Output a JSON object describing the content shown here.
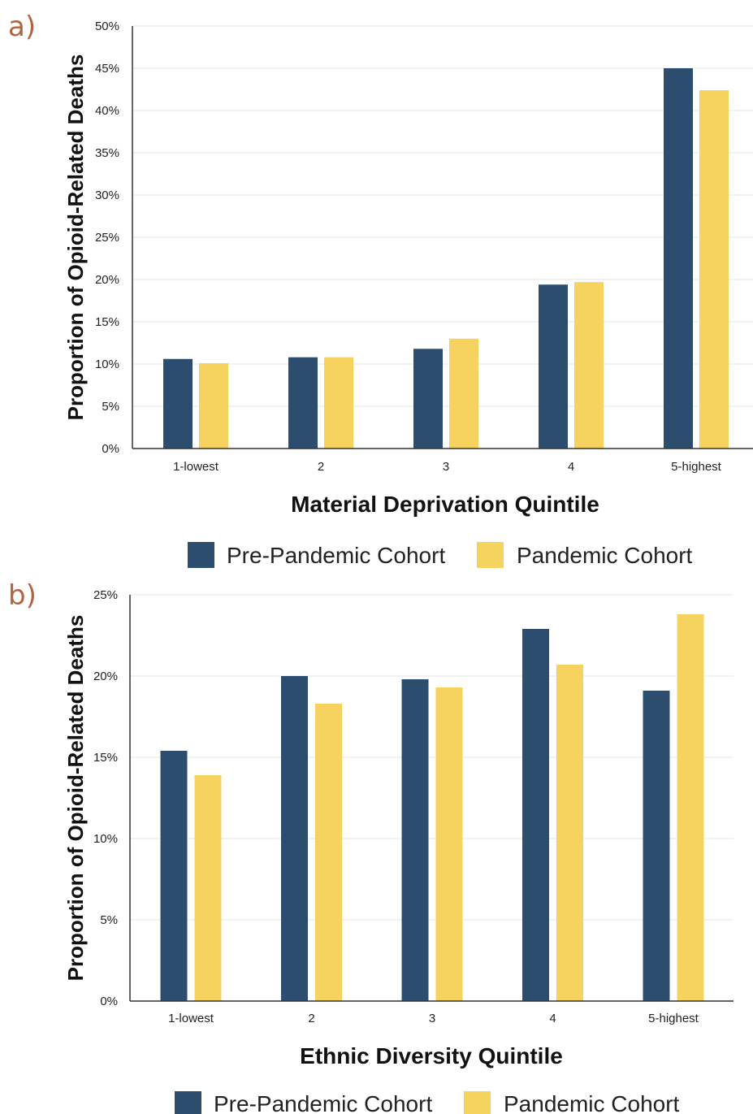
{
  "colors": {
    "pre": "#2c4d6e",
    "pan": "#f6d35f",
    "grid": "#e6e6e6",
    "axis": "#333333"
  },
  "legend": {
    "pre_label": "Pre-Pandemic Cohort",
    "pan_label": "Pandemic Cohort"
  },
  "chart_data": [
    {
      "type": "bar",
      "panel_label": "a)",
      "title": "",
      "xlabel": "Material Deprivation Quintile",
      "ylabel": "Proportion of Opioid-Related Deaths",
      "ylim": [
        0,
        50
      ],
      "ytick_step": 5,
      "ytick_format": "percent",
      "grid": true,
      "categories": [
        "1-lowest",
        "2",
        "3",
        "4",
        "5-highest"
      ],
      "series": [
        {
          "name": "Pre-Pandemic Cohort",
          "values": [
            10.6,
            10.8,
            11.8,
            19.4,
            45.0
          ]
        },
        {
          "name": "Pandemic Cohort",
          "values": [
            10.1,
            10.8,
            13.0,
            19.7,
            42.4
          ]
        }
      ]
    },
    {
      "type": "bar",
      "panel_label": "b)",
      "title": "",
      "xlabel": "Ethnic Diversity Quintile",
      "ylabel": "Proportion of Opioid-Related Deaths",
      "ylim": [
        0,
        25
      ],
      "ytick_step": 5,
      "ytick_format": "percent",
      "grid": true,
      "categories": [
        "1-lowest",
        "2",
        "3",
        "4",
        "5-highest"
      ],
      "series": [
        {
          "name": "Pre-Pandemic Cohort",
          "values": [
            15.4,
            20.0,
            19.8,
            22.9,
            19.1
          ]
        },
        {
          "name": "Pandemic Cohort",
          "values": [
            13.9,
            18.3,
            19.3,
            20.7,
            23.8
          ]
        }
      ]
    }
  ]
}
